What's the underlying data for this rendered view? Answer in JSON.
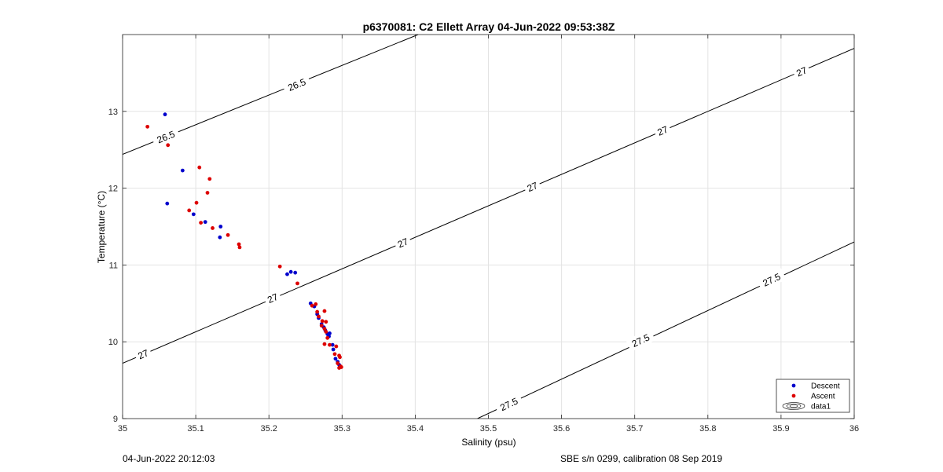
{
  "chart_data": {
    "type": "scatter",
    "title": "p6370081: C2 Ellett Array 04-Jun-2022 09:53:38Z",
    "xlabel": "Salinity (psu)",
    "ylabel": "Temperature (°C)",
    "xlim": [
      35,
      36
    ],
    "ylim": [
      9,
      14
    ],
    "xticks": [
      35,
      35.1,
      35.2,
      35.3,
      35.4,
      35.5,
      35.6,
      35.7,
      35.8,
      35.9,
      36
    ],
    "xtick_labels": [
      "35",
      "35.1",
      "35.2",
      "35.3",
      "35.4",
      "35.5",
      "35.6",
      "35.7",
      "35.8",
      "35.9",
      "36"
    ],
    "yticks": [
      9,
      10,
      11,
      12,
      13
    ],
    "ytick_labels": [
      "9",
      "10",
      "11",
      "12",
      "13"
    ],
    "grid": true,
    "legend": "bottom-right",
    "series": [
      {
        "name": "Descent",
        "color": "#0000cc",
        "points": [
          [
            35.058,
            12.96
          ],
          [
            35.082,
            12.23
          ],
          [
            35.061,
            11.8
          ],
          [
            35.097,
            11.66
          ],
          [
            35.113,
            11.56
          ],
          [
            35.134,
            11.5
          ],
          [
            35.133,
            11.36
          ],
          [
            35.225,
            10.88
          ],
          [
            35.23,
            10.91
          ],
          [
            35.236,
            10.9
          ],
          [
            35.257,
            10.5
          ],
          [
            35.262,
            10.46
          ],
          [
            35.266,
            10.36
          ],
          [
            35.268,
            10.31
          ],
          [
            35.272,
            10.23
          ],
          [
            35.275,
            10.19
          ],
          [
            35.277,
            10.15
          ],
          [
            35.28,
            10.1
          ],
          [
            35.282,
            10.07
          ],
          [
            35.283,
            10.11
          ],
          [
            35.287,
            9.96
          ],
          [
            35.288,
            9.9
          ],
          [
            35.291,
            9.78
          ],
          [
            35.294,
            9.74
          ],
          [
            35.296,
            9.7
          ],
          [
            35.297,
            9.68
          ]
        ]
      },
      {
        "name": "Ascent",
        "color": "#dd0000",
        "points": [
          [
            35.034,
            12.8
          ],
          [
            35.062,
            12.56
          ],
          [
            35.105,
            12.27
          ],
          [
            35.119,
            12.12
          ],
          [
            35.116,
            11.94
          ],
          [
            35.101,
            11.81
          ],
          [
            35.091,
            11.71
          ],
          [
            35.107,
            11.55
          ],
          [
            35.123,
            11.48
          ],
          [
            35.144,
            11.39
          ],
          [
            35.159,
            11.27
          ],
          [
            35.16,
            11.23
          ],
          [
            35.215,
            10.98
          ],
          [
            35.239,
            10.76
          ],
          [
            35.259,
            10.47
          ],
          [
            35.264,
            10.49
          ],
          [
            35.266,
            10.39
          ],
          [
            35.268,
            10.33
          ],
          [
            35.276,
            10.4
          ],
          [
            35.273,
            10.27
          ],
          [
            35.272,
            10.21
          ],
          [
            35.278,
            10.26
          ],
          [
            35.276,
            10.17
          ],
          [
            35.278,
            10.13
          ],
          [
            35.28,
            10.05
          ],
          [
            35.276,
            9.97
          ],
          [
            35.283,
            9.96
          ],
          [
            35.292,
            9.94
          ],
          [
            35.29,
            9.84
          ],
          [
            35.296,
            9.82
          ],
          [
            35.297,
            9.8
          ],
          [
            35.294,
            9.72
          ],
          [
            35.298,
            9.68
          ],
          [
            35.296,
            9.66
          ],
          [
            35.299,
            9.67
          ]
        ]
      }
    ],
    "contours": [
      {
        "sigma": 26.5,
        "label": "26.5",
        "line": [
          [
            35.0,
            12.44
          ],
          [
            35.404,
            14.0
          ]
        ],
        "labels_at": [
          [
            35.059,
            12.67
          ],
          [
            35.238,
            13.35
          ]
        ]
      },
      {
        "sigma": 27.0,
        "label": "27",
        "line": [
          [
            35.0,
            9.72
          ],
          [
            36.0,
            13.82
          ]
        ],
        "labels_at": [
          [
            35.028,
            9.84
          ],
          [
            35.205,
            10.57
          ],
          [
            35.383,
            11.29
          ],
          [
            35.56,
            12.02
          ],
          [
            35.738,
            12.75
          ],
          [
            35.928,
            13.52
          ]
        ]
      },
      {
        "sigma": 27.5,
        "label": "27.5",
        "line": [
          [
            35.485,
            9.0
          ],
          [
            36.0,
            11.3
          ]
        ],
        "labels_at": [
          [
            35.528,
            9.19
          ],
          [
            35.708,
            10.02
          ],
          [
            35.887,
            10.81
          ]
        ]
      }
    ],
    "legend_entries": [
      {
        "label": "Descent",
        "kind": "marker",
        "color": "#0000cc"
      },
      {
        "label": "Ascent",
        "kind": "marker",
        "color": "#dd0000"
      },
      {
        "label": "data1",
        "kind": "contour",
        "color": "#000000"
      }
    ]
  },
  "footer": {
    "timestamp": "04-Jun-2022 20:12:03",
    "sensor": "SBE s/n 0299, calibration 08 Sep 2019"
  }
}
